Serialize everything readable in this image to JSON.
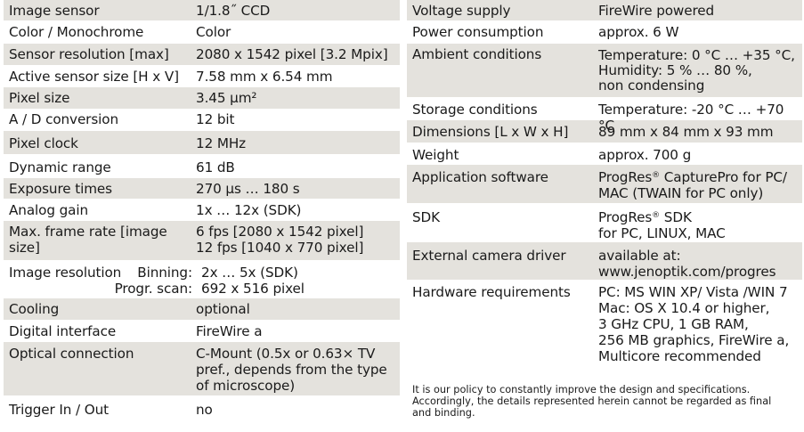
{
  "left": {
    "rows": [
      {
        "label": "Image sensor",
        "value": [
          "1/1.8˝ CCD"
        ]
      },
      {
        "label": "Color / Monochrome",
        "value": [
          "Color"
        ]
      },
      {
        "label": "Sensor resolution [max]",
        "value": [
          "2080 x 1542 pixel [3.2 Mpix]"
        ]
      },
      {
        "label": "Active sensor size [H x V]",
        "value": [
          "7.58 mm x 6.54 mm"
        ]
      },
      {
        "label": "Pixel size",
        "value": [
          "3.45 µm²"
        ]
      },
      {
        "label": "A / D conversion",
        "value": [
          "12 bit"
        ]
      },
      {
        "label": "Pixel clock",
        "value": [
          "12 MHz"
        ]
      },
      {
        "label": "Dynamic range",
        "value": [
          "61 dB"
        ]
      },
      {
        "label": "Exposure times",
        "value": [
          "270 µs … 180 s"
        ]
      },
      {
        "label": "Analog gain",
        "value": [
          "1x … 12x (SDK)"
        ]
      },
      {
        "label": "Max. frame rate [image size]",
        "value": [
          "6 fps [2080 x 1542 pixel]",
          "12 fps [1040 x 770 pixel]"
        ]
      },
      {
        "label": "Cooling",
        "value": [
          "optional"
        ]
      },
      {
        "label": "Digital interface",
        "value": [
          "FireWire a"
        ]
      },
      {
        "label": "Optical connection",
        "value": [
          "C-Mount (0.5x or 0.63× TV",
          "pref., depends from the type",
          "of microscope)"
        ]
      },
      {
        "label": "Trigger In / Out",
        "value": [
          "no"
        ]
      }
    ],
    "image_resolution": {
      "label": "Image resolution",
      "binning_label": "Binning:",
      "binning_value": "2x … 5x (SDK)",
      "scan_label": "Progr. scan:",
      "scan_value": "692 x 516 pixel"
    }
  },
  "right": {
    "rows": [
      {
        "label": "Voltage supply",
        "value": [
          "FireWire powered"
        ]
      },
      {
        "label": "Power consumption",
        "value": [
          "approx. 6 W"
        ]
      },
      {
        "label": "Ambient conditions",
        "value": [
          "Temperature: 0 °C … +35 °C,",
          "Humidity:  5 % … 80 %,",
          "non condensing"
        ]
      },
      {
        "label": "Storage conditions",
        "value": [
          "Temperature: -20 °C … +70 °C"
        ]
      },
      {
        "label": "Dimensions [L x W x H]",
        "value": [
          "89 mm x 84 mm x 93 mm"
        ]
      },
      {
        "label": "Weight",
        "value": [
          "approx. 700 g"
        ]
      },
      {
        "label": "Application software",
        "value": [
          "ProgRes® CapturePro for PC/",
          "MAC (TWAIN for PC only)"
        ]
      },
      {
        "label": "SDK",
        "value": [
          "ProgRes® SDK",
          "for PC, LINUX, MAC"
        ]
      },
      {
        "label": "External camera driver",
        "value": [
          "available at:",
          "www.jenoptik.com/progres"
        ]
      },
      {
        "label": "Hardware requirements",
        "value": [
          "PC: MS WIN XP/ Vista /WIN 7",
          "Mac: OS X 10.4 or higher,",
          "3 GHz CPU, 1 GB RAM,",
          "256 MB graphics, FireWire a,",
          "Multicore recommended"
        ]
      }
    ]
  },
  "note": "It is our policy to constantly improve the design and specifications. Accordingly, the details represented herein cannot be regarded as final and binding.",
  "colors": {
    "shaded_row": "#e4e2dd",
    "text": "#1a1a1a"
  }
}
